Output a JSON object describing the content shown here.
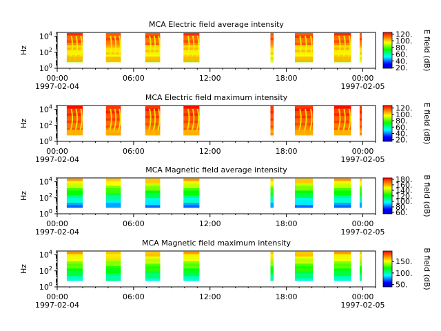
{
  "colors": {
    "background": "#ffffff",
    "axis": "#000000",
    "colormap": [
      "#0000c8",
      "#0000ff",
      "#00ffff",
      "#00ff00",
      "#ffff00",
      "#ff8000",
      "#ff0000"
    ]
  },
  "chart_data": [
    {
      "type": "heatmap",
      "title": "MCA  Electric field average intensity",
      "ylabel": "Hz",
      "xlabel": "",
      "x_ticks": [
        "00:00",
        "06:00",
        "12:00",
        "18:00",
        "00:00"
      ],
      "x_dates": [
        "1997-02-04",
        "1997-02-05"
      ],
      "xlim": [
        "1997-02-04T00:00",
        "1997-02-05T01:00"
      ],
      "y_scale": "log",
      "y_ticks": [
        "10^0",
        "10^2",
        "10^4"
      ],
      "ylim_hz": [
        1,
        30000
      ],
      "colorbar_label": "E field (dB)",
      "colorbar_range": [
        18,
        125
      ],
      "colorbar_ticks": [
        "20.",
        "40.",
        "60.",
        "80.",
        "100.",
        "120."
      ],
      "data_intervals": [
        [
          "00:45",
          "02:00"
        ],
        [
          "03:50",
          "05:00"
        ],
        [
          "06:55",
          "08:05"
        ],
        [
          "09:55",
          "11:10"
        ],
        [
          "16:45",
          "17:00"
        ],
        [
          "18:40",
          "20:05"
        ],
        [
          "21:45",
          "23:05"
        ],
        [
          "23:45",
          "23:55"
        ]
      ]
    },
    {
      "type": "heatmap",
      "title": "MCA  Electric field maximum intensity",
      "ylabel": "Hz",
      "xlabel": "",
      "x_ticks": [
        "00:00",
        "06:00",
        "12:00",
        "18:00",
        "00:00"
      ],
      "x_dates": [
        "1997-02-04",
        "1997-02-05"
      ],
      "xlim": [
        "1997-02-04T00:00",
        "1997-02-05T01:00"
      ],
      "y_scale": "log",
      "y_ticks": [
        "10^0",
        "10^2",
        "10^4"
      ],
      "ylim_hz": [
        1,
        30000
      ],
      "colorbar_label": "E field (dB)",
      "colorbar_range": [
        15,
        128
      ],
      "colorbar_ticks": [
        "20.",
        "40.",
        "60.",
        "80.",
        "100.",
        "120."
      ],
      "data_intervals": [
        [
          "00:45",
          "02:00"
        ],
        [
          "03:50",
          "05:00"
        ],
        [
          "06:55",
          "08:05"
        ],
        [
          "09:55",
          "11:10"
        ],
        [
          "16:45",
          "17:00"
        ],
        [
          "18:40",
          "20:05"
        ],
        [
          "21:45",
          "23:05"
        ],
        [
          "23:45",
          "23:55"
        ]
      ]
    },
    {
      "type": "heatmap",
      "title": "MCA  Magnetic field average intensity",
      "ylabel": "Hz",
      "xlabel": "",
      "x_ticks": [
        "00:00",
        "06:00",
        "12:00",
        "18:00",
        "00:00"
      ],
      "x_dates": [
        "1997-02-04",
        "1997-02-05"
      ],
      "xlim": [
        "1997-02-04T00:00",
        "1997-02-05T01:00"
      ],
      "y_scale": "log",
      "y_ticks": [
        "10^0",
        "10^2",
        "10^4"
      ],
      "ylim_hz": [
        1,
        30000
      ],
      "colorbar_label": "B field (dB)",
      "colorbar_range": [
        55,
        185
      ],
      "colorbar_ticks": [
        "60.",
        "80.",
        "100.",
        "120.",
        "140.",
        "160.",
        "180."
      ],
      "data_intervals": [
        [
          "00:45",
          "02:00"
        ],
        [
          "03:50",
          "05:00"
        ],
        [
          "06:55",
          "08:05"
        ],
        [
          "09:55",
          "11:10"
        ],
        [
          "16:45",
          "17:00"
        ],
        [
          "18:40",
          "20:05"
        ],
        [
          "21:45",
          "23:05"
        ],
        [
          "23:45",
          "23:55"
        ]
      ]
    },
    {
      "type": "heatmap",
      "title": "MCA  Magnetic field maximum intensity",
      "ylabel": "Hz",
      "xlabel": "",
      "x_ticks": [
        "00:00",
        "06:00",
        "12:00",
        "18:00",
        "00:00"
      ],
      "x_dates": [
        "1997-02-04",
        "1997-02-05"
      ],
      "xlim": [
        "1997-02-04T00:00",
        "1997-02-05T01:00"
      ],
      "y_scale": "log",
      "y_ticks": [
        "10^0",
        "10^2",
        "10^4"
      ],
      "ylim_hz": [
        1,
        30000
      ],
      "colorbar_label": "B field (dB)",
      "colorbar_range": [
        40,
        195
      ],
      "colorbar_ticks": [
        "50.",
        "100.",
        "150."
      ],
      "data_intervals": [
        [
          "00:45",
          "02:00"
        ],
        [
          "03:50",
          "05:00"
        ],
        [
          "06:55",
          "08:05"
        ],
        [
          "09:55",
          "11:10"
        ],
        [
          "16:45",
          "17:00"
        ],
        [
          "18:40",
          "20:05"
        ],
        [
          "21:45",
          "23:05"
        ],
        [
          "23:45",
          "23:55"
        ]
      ]
    }
  ]
}
